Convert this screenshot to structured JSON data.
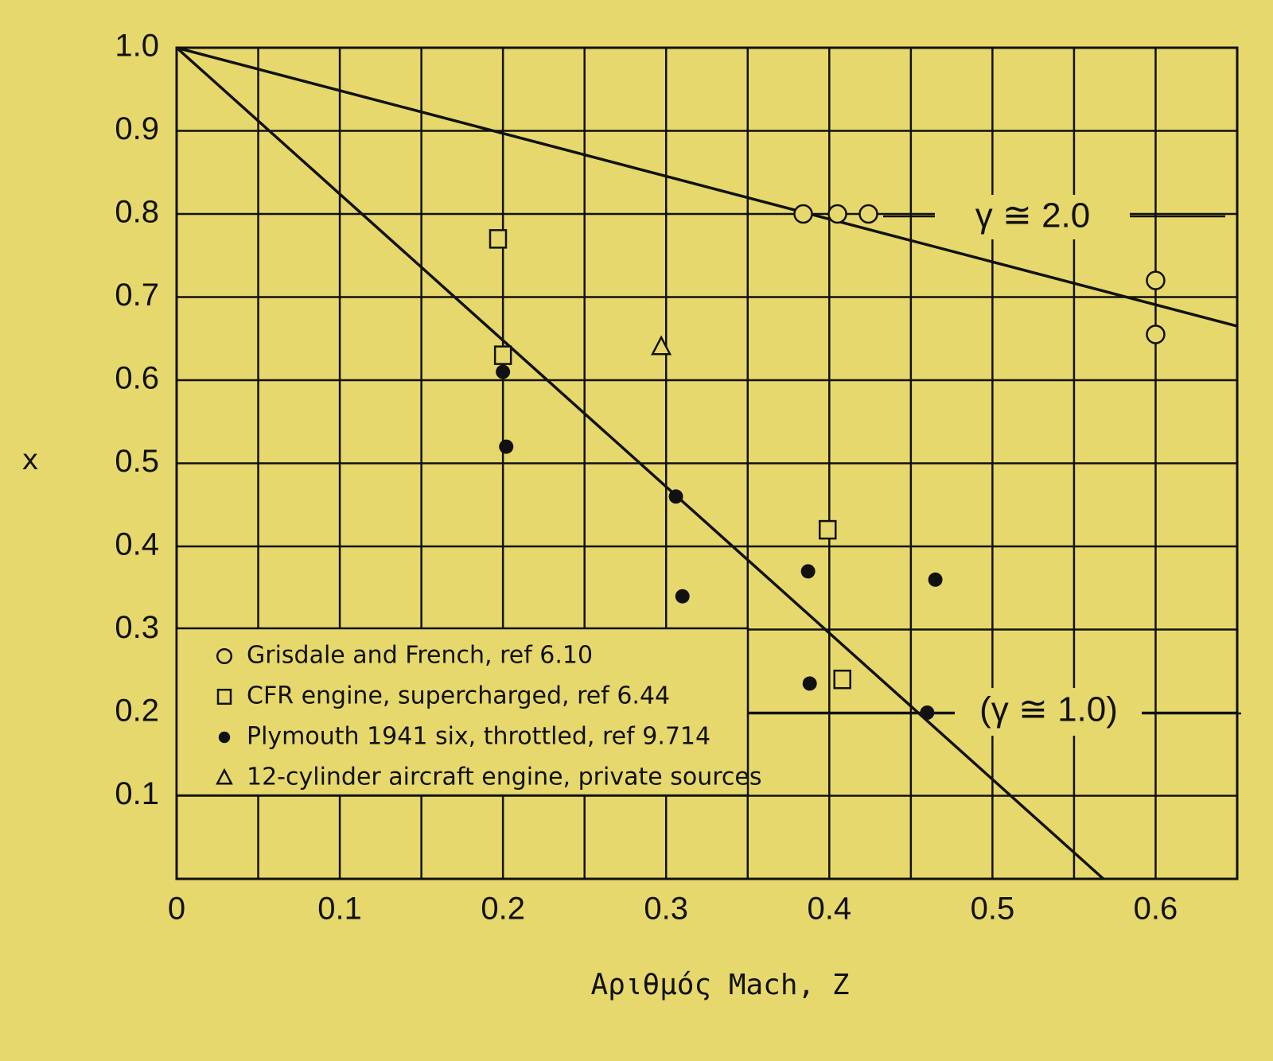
{
  "chart_data": {
    "type": "scatter",
    "xlabel": "Αριθμός Mach, Z",
    "ylabel": "x",
    "xlim": [
      0,
      0.65
    ],
    "ylim": [
      0,
      1
    ],
    "xticks": [
      0,
      0.1,
      0.2,
      0.3,
      0.4,
      0.5,
      0.6
    ],
    "yticks": [
      0.1,
      0.2,
      0.3,
      0.4,
      0.5,
      0.6,
      0.7,
      0.8,
      0.9,
      {
        "value": 1,
        "label": "1.0"
      }
    ],
    "xgrid": [
      0.05,
      0.1,
      0.15,
      0.2,
      0.25,
      0.3,
      0.35,
      0.4,
      0.45,
      0.5,
      0.55,
      0.6,
      0.65
    ],
    "grid": true,
    "series": [
      {
        "name": "Grisdale and French, ref 6.10",
        "marker": "open-circle",
        "color": "#111111",
        "x": [
          0.384,
          0.405,
          0.424,
          0.6,
          0.6
        ],
        "values": [
          0.8,
          0.8,
          0.8,
          0.72,
          0.655
        ]
      },
      {
        "name": "CFR engine, supercharged, ref 6.44",
        "marker": "open-square",
        "color": "#111111",
        "x": [
          0.197,
          0.2,
          0.399,
          0.408
        ],
        "values": [
          0.77,
          0.63,
          0.42,
          0.24
        ]
      },
      {
        "name": "Plymouth 1941 six, throttled, ref 9.714",
        "marker": "filled-circle",
        "color": "#111111",
        "x": [
          0.2,
          0.202,
          0.306,
          0.31,
          0.387,
          0.388,
          0.465,
          0.46
        ],
        "values": [
          0.61,
          0.52,
          0.46,
          0.34,
          0.37,
          0.235,
          0.36,
          0.2
        ]
      },
      {
        "name": "12-cylinder aircraft engine, private sources",
        "marker": "open-triangle",
        "color": "#111111",
        "x": [
          0.297
        ],
        "values": [
          0.64
        ]
      }
    ],
    "lines": [
      {
        "label": "γ ≅ 2.0",
        "color": "#111111",
        "x": [
          0,
          0.65
        ],
        "values": [
          1,
          0.665
        ]
      },
      {
        "label": "(γ ≅ 1.0)",
        "color": "#111111",
        "x": [
          0,
          0.568
        ],
        "values": [
          1,
          0
        ]
      }
    ]
  }
}
